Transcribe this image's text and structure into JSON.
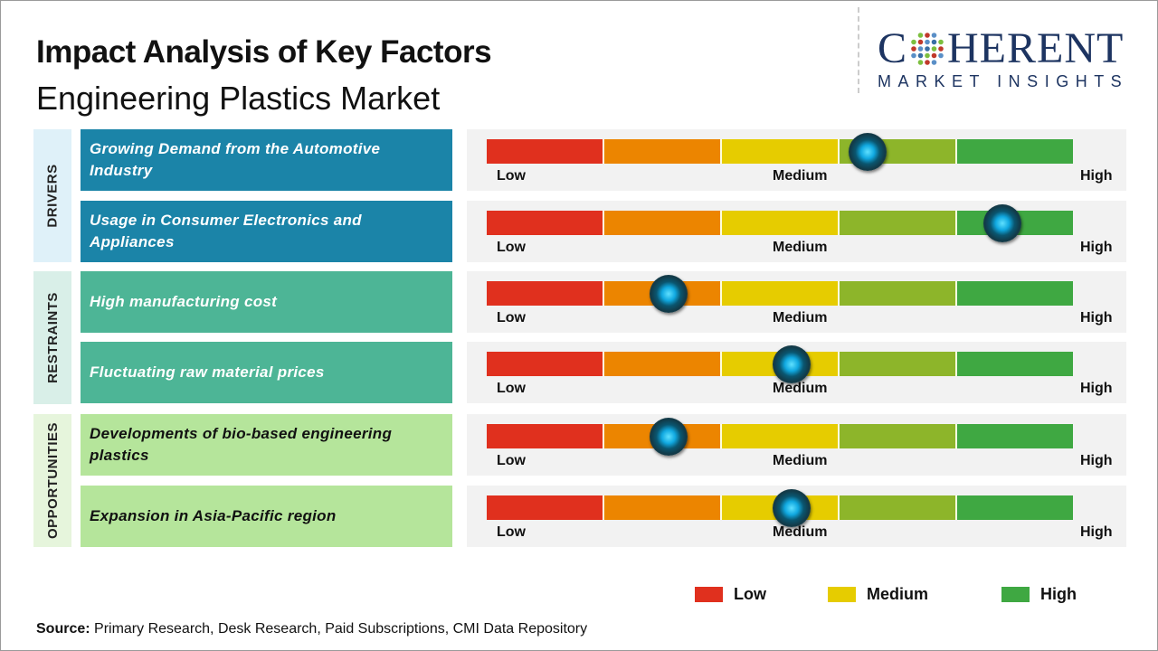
{
  "header": {
    "title": "Impact Analysis of Key Factors",
    "subtitle": "Engineering Plastics Market"
  },
  "logo": {
    "main_left": "C",
    "main_right": "HERENT",
    "sub": "MARKET INSIGHTS"
  },
  "scale_labels": {
    "low": "Low",
    "medium": "Medium",
    "high": "High"
  },
  "colors": {
    "segments": [
      "#e0301e",
      "#ec8500",
      "#e6cc00",
      "#8db52a",
      "#3fa842"
    ],
    "marker": "#10a8e0"
  },
  "categories": [
    {
      "label": "DRIVERS",
      "bg": "#dff1f9",
      "factor_bg": "#1b84a8",
      "factor_color": "#ffffff"
    },
    {
      "label": "RESTRAINTS",
      "bg": "#d9efe8",
      "factor_bg": "#4db596",
      "factor_color": "#ffffff"
    },
    {
      "label": "OPPORTUNITIES",
      "bg": "#e6f5dc",
      "factor_bg": "#b5e59b",
      "factor_color": "#111111"
    }
  ],
  "chart_data": {
    "type": "table",
    "scale": [
      "Low",
      "Medium",
      "High"
    ],
    "rows": [
      {
        "category": "DRIVERS",
        "factor": "Growing Demand from the Automotive Industry",
        "impact": 0.65
      },
      {
        "category": "DRIVERS",
        "factor": "Usage in Consumer Electronics and Appliances",
        "impact": 0.88
      },
      {
        "category": "RESTRAINTS",
        "factor": "High manufacturing cost",
        "impact": 0.31
      },
      {
        "category": "RESTRAINTS",
        "factor": "Fluctuating raw material prices",
        "impact": 0.52
      },
      {
        "category": "OPPORTUNITIES",
        "factor": "Developments of bio-based engineering plastics",
        "impact": 0.31
      },
      {
        "category": "OPPORTUNITIES",
        "factor": "Expansion in Asia-Pacific region",
        "impact": 0.52
      }
    ],
    "legend": [
      {
        "label": "Low",
        "color": "#e0301e"
      },
      {
        "label": "Medium",
        "color": "#e6cc00"
      },
      {
        "label": "High",
        "color": "#3fa842"
      }
    ]
  },
  "source": {
    "label": "Source:",
    "text": " Primary Research, Desk Research, Paid Subscriptions, CMI Data Repository"
  }
}
